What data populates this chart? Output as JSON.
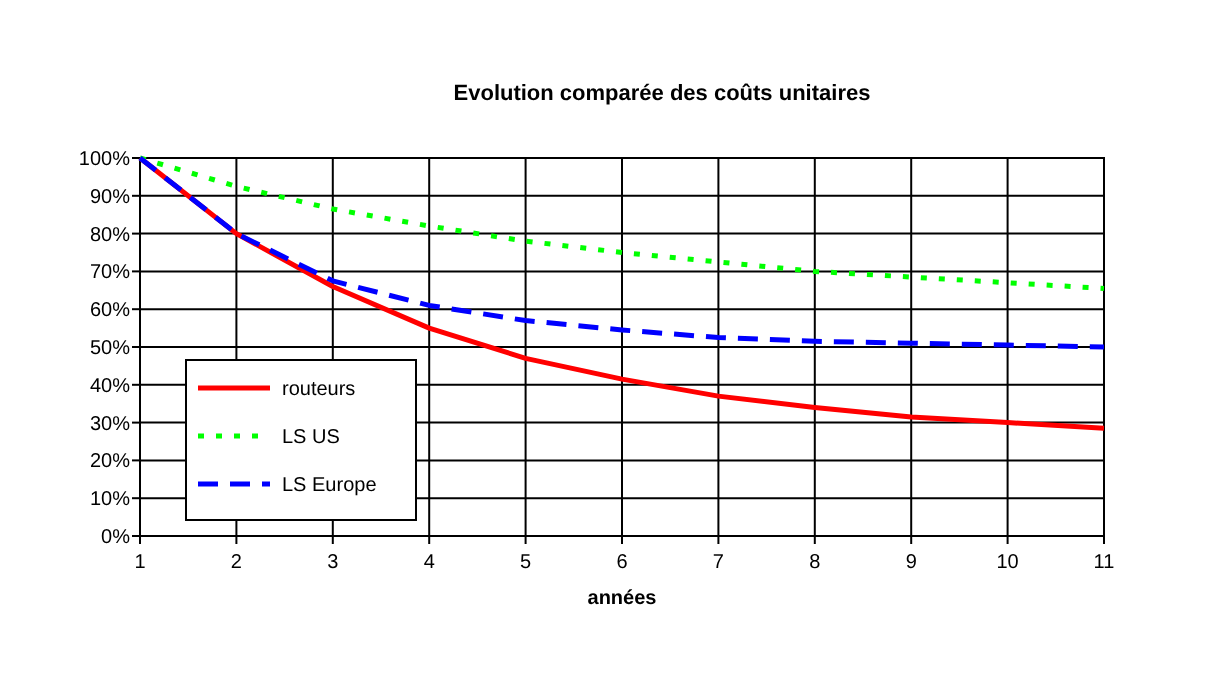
{
  "chart_data": {
    "type": "line",
    "title": "Evolution comparée des coûts unitaires",
    "xlabel": "années",
    "x": [
      1,
      2,
      3,
      4,
      5,
      6,
      7,
      8,
      9,
      10,
      11
    ],
    "series": [
      {
        "name": "routeurs",
        "color": "#ff0000",
        "line_style": "solid",
        "values": [
          100,
          80,
          66,
          55,
          47,
          41.5,
          37,
          34,
          31.5,
          30,
          28.5
        ]
      },
      {
        "name": "LS US",
        "color": "#00ff00",
        "line_style": "dotted",
        "values": [
          100,
          92.5,
          86.5,
          82,
          78,
          75,
          72.5,
          70,
          68.5,
          67,
          65.5
        ]
      },
      {
        "name": "LS Europe",
        "color": "#0000ff",
        "line_style": "dashed",
        "values": [
          100,
          80,
          67.5,
          61,
          57,
          54.5,
          52.5,
          51.5,
          51,
          50.5,
          50
        ]
      }
    ],
    "xlim": [
      1,
      11
    ],
    "xticks": [
      1,
      2,
      3,
      4,
      5,
      6,
      7,
      8,
      9,
      10,
      11
    ],
    "ylim": [
      0,
      100
    ],
    "yticks": [
      {
        "value": 0,
        "label": "0%"
      },
      {
        "value": 10,
        "label": "10%"
      },
      {
        "value": 20,
        "label": "20%"
      },
      {
        "value": 30,
        "label": "30%"
      },
      {
        "value": 40,
        "label": "40%"
      },
      {
        "value": 50,
        "label": "50%"
      },
      {
        "value": 60,
        "label": "60%"
      },
      {
        "value": 70,
        "label": "70%"
      },
      {
        "value": 80,
        "label": "80%"
      },
      {
        "value": 90,
        "label": "90%"
      },
      {
        "value": 100,
        "label": "100%"
      }
    ],
    "grid": true,
    "legend": "bottom left",
    "marker": "none"
  }
}
